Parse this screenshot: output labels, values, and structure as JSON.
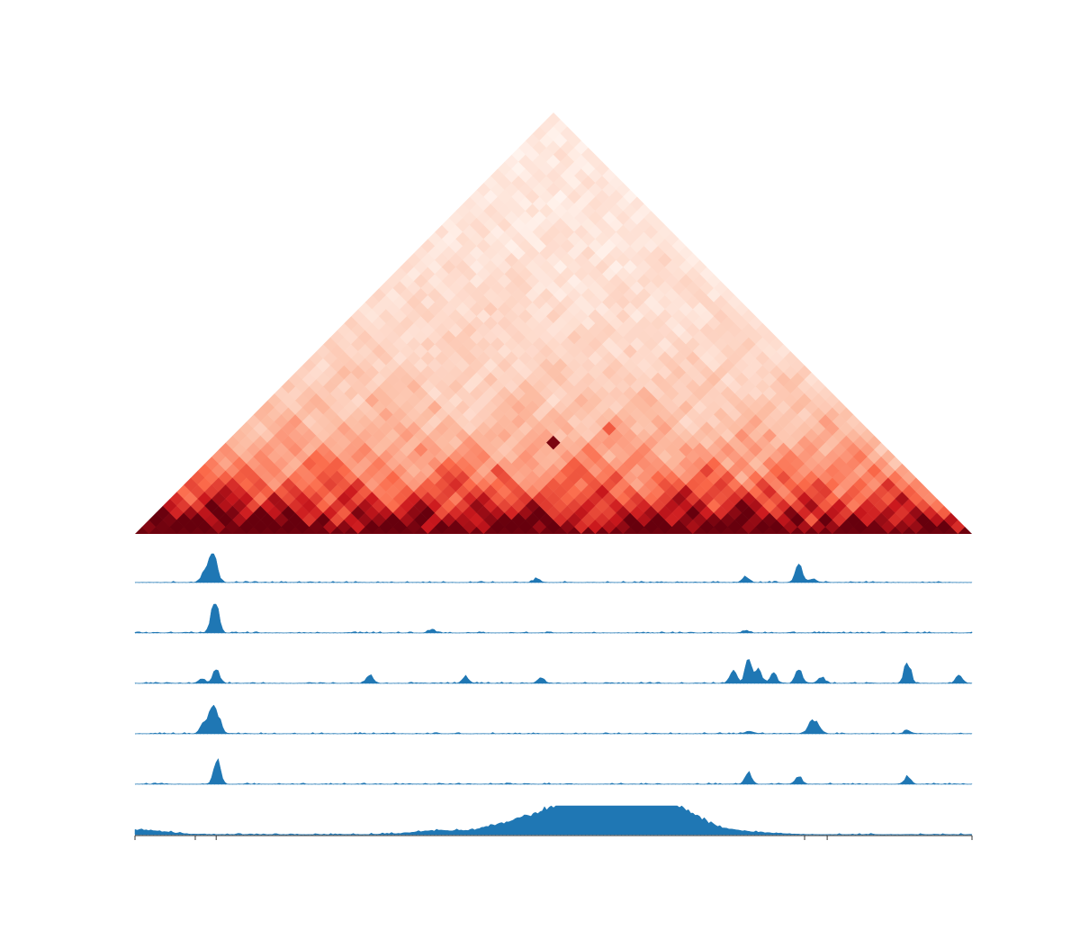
{
  "figure": {
    "background": "#ffffff",
    "heatmap_colormap": [
      "#fff5f0",
      "#fcbba1",
      "#fb6a4a",
      "#cb181d",
      "#67000d"
    ],
    "track_color": "#1f77b4"
  },
  "chart_data": [
    {
      "type": "heatmap",
      "shape": "upper-triangle contact matrix (rotated 45 degrees)",
      "colormap": "Reds",
      "n_bins": 60,
      "distance_decay": 0.055,
      "strong_contacts": [
        {
          "i": 23,
          "j": 36,
          "value": 0.95
        },
        {
          "i": 21,
          "j": 30,
          "value": 0.6
        },
        {
          "i": 26,
          "j": 41,
          "value": 0.55
        }
      ],
      "title": "",
      "xlabel": "",
      "ylabel": ""
    },
    {
      "type": "area",
      "name": "",
      "x_range": [
        0,
        1
      ],
      "ylim": [
        0,
        1
      ],
      "peaks": [
        [
          0.082,
          0.35
        ],
        [
          0.09,
          0.55
        ],
        [
          0.095,
          0.95
        ],
        [
          0.48,
          0.15
        ],
        [
          0.73,
          0.25
        ],
        [
          0.793,
          0.75
        ],
        [
          0.81,
          0.15
        ]
      ]
    },
    {
      "type": "area",
      "name": "",
      "x_range": [
        0,
        1
      ],
      "ylim": [
        0,
        1
      ],
      "peaks": [
        [
          0.093,
          0.5
        ],
        [
          0.097,
          1.0
        ],
        [
          0.355,
          0.15
        ],
        [
          0.73,
          0.1
        ]
      ]
    },
    {
      "type": "area",
      "name": "",
      "x_range": [
        0,
        1
      ],
      "ylim": [
        0,
        1
      ],
      "peaks": [
        [
          0.08,
          0.2
        ],
        [
          0.097,
          0.6
        ],
        [
          0.28,
          0.35
        ],
        [
          0.395,
          0.25
        ],
        [
          0.485,
          0.25
        ],
        [
          0.715,
          0.5
        ],
        [
          0.733,
          1.0
        ],
        [
          0.745,
          0.55
        ],
        [
          0.763,
          0.4
        ],
        [
          0.793,
          0.6
        ],
        [
          0.82,
          0.25
        ],
        [
          0.923,
          0.85
        ],
        [
          0.985,
          0.3
        ]
      ]
    },
    {
      "type": "area",
      "name": "",
      "x_range": [
        0,
        1
      ],
      "ylim": [
        0,
        1
      ],
      "peaks": [
        [
          0.082,
          0.45
        ],
        [
          0.092,
          1.0
        ],
        [
          0.1,
          0.6
        ],
        [
          0.733,
          0.1
        ],
        [
          0.808,
          0.45
        ],
        [
          0.815,
          0.35
        ],
        [
          0.923,
          0.15
        ]
      ]
    },
    {
      "type": "area",
      "name": "",
      "x_range": [
        0,
        1
      ],
      "ylim": [
        0,
        1
      ],
      "peaks": [
        [
          0.098,
          1.0
        ],
        [
          0.733,
          0.45
        ],
        [
          0.793,
          0.3
        ],
        [
          0.923,
          0.3
        ]
      ]
    },
    {
      "type": "area",
      "name": "",
      "x_range": [
        0,
        1
      ],
      "ylim": [
        0,
        1
      ],
      "peaks": [
        [
          0.005,
          0.2
        ],
        [
          0.36,
          0.15
        ],
        [
          0.44,
          0.3
        ],
        [
          0.49,
          0.6
        ],
        [
          0.53,
          0.75
        ],
        [
          0.56,
          0.85
        ],
        [
          0.59,
          1.0
        ],
        [
          0.625,
          0.8
        ],
        [
          0.66,
          0.55
        ],
        [
          0.73,
          0.1
        ]
      ]
    },
    {
      "type": "axis",
      "x_range": [
        0,
        1
      ],
      "ticks": [
        0,
        0.072,
        0.097,
        0.8,
        0.827,
        1
      ],
      "tick_labels": [
        "",
        "",
        "",
        "",
        "",
        ""
      ]
    }
  ]
}
